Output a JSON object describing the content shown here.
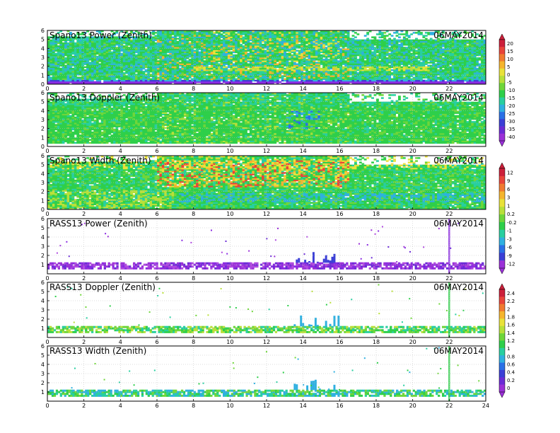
{
  "date_label": "06MAY2014",
  "chart_data": [
    {
      "type": "heatmap",
      "title": "Spano13 Power (Zenith)",
      "date": "06MAY2014",
      "xlim": [
        0,
        24
      ],
      "ylim": [
        0,
        6
      ],
      "x_ticks": [
        "0",
        "2",
        "4",
        "6",
        "8",
        "10",
        "12",
        "14",
        "16",
        "18",
        "20",
        "22"
      ],
      "y_ticks": [
        "0",
        "1",
        "2",
        "3",
        "4",
        "5",
        "6"
      ],
      "colorbar": [
        "20",
        "15",
        "10",
        "5",
        "0",
        "-5",
        "-10",
        "-15",
        "-20",
        "-25",
        "-30",
        "-35",
        "-40"
      ]
    },
    {
      "type": "heatmap",
      "title": "Spano13 Doppler (Zenith)",
      "date": "06MAY2014",
      "xlim": [
        0,
        24
      ],
      "ylim": [
        0,
        6
      ],
      "x_ticks": [
        "0",
        "2",
        "4",
        "6",
        "8",
        "10",
        "12",
        "14",
        "16",
        "18",
        "20",
        "22"
      ],
      "y_ticks": [
        "0",
        "1",
        "2",
        "3",
        "4",
        "5",
        "6"
      ]
    },
    {
      "type": "heatmap",
      "title": "Spano13 Width (Zenith)",
      "date": "06MAY2014",
      "xlim": [
        0,
        24
      ],
      "ylim": [
        0,
        6
      ],
      "x_ticks": [
        "0",
        "2",
        "4",
        "6",
        "8",
        "10",
        "12",
        "14",
        "16",
        "18",
        "20",
        "22"
      ],
      "y_ticks": [
        "0",
        "1",
        "2",
        "3",
        "4",
        "5",
        "6"
      ],
      "colorbar": [
        "12",
        "9",
        "6",
        "3",
        "1",
        "0.2",
        "-0.2",
        "-1",
        "-3",
        "-6",
        "-9",
        "-12"
      ]
    },
    {
      "type": "heatmap",
      "title": "RASS13 Power (Zenith)",
      "date": "06MAY2014",
      "xlim": [
        0,
        24
      ],
      "ylim": [
        0,
        6
      ],
      "x_ticks": [
        "0",
        "2",
        "4",
        "6",
        "8",
        "10",
        "12",
        "14",
        "16",
        "18",
        "20",
        "22"
      ],
      "y_ticks": [
        "1",
        "2",
        "3",
        "4",
        "5",
        "6"
      ]
    },
    {
      "type": "heatmap",
      "title": "RASS13 Doppler (Zenith)",
      "date": "06MAY2014",
      "xlim": [
        0,
        24
      ],
      "ylim": [
        0,
        6
      ],
      "x_ticks": [
        "0",
        "2",
        "4",
        "6",
        "8",
        "10",
        "12",
        "14",
        "16",
        "18",
        "20",
        "22"
      ],
      "y_ticks": [
        "1",
        "2",
        "3",
        "4",
        "5",
        "6"
      ],
      "colorbar": [
        "2.4",
        "2.2",
        "2",
        "1.8",
        "1.6",
        "1.4",
        "1.2",
        "1",
        "0.8",
        "0.6",
        "0.4",
        "0.2",
        "0"
      ]
    },
    {
      "type": "heatmap",
      "title": "RASS13 Width (Zenith)",
      "date": "06MAY2014",
      "xlim": [
        0,
        24
      ],
      "ylim": [
        0,
        6
      ],
      "x_ticks": [
        "0",
        "2",
        "4",
        "6",
        "8",
        "10",
        "12",
        "14",
        "16",
        "18",
        "20",
        "22",
        "24"
      ],
      "y_ticks": [
        "1",
        "2",
        "3",
        "4",
        "5",
        "6"
      ]
    }
  ]
}
